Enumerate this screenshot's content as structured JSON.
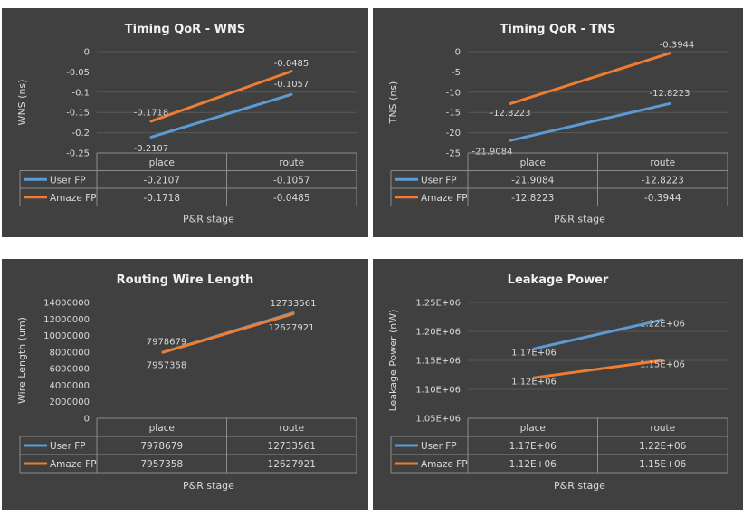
{
  "colors": {
    "background": "#404040",
    "user_fp": "#5b9bd5",
    "amaze_fp": "#ed7d31",
    "text": "#d9d9d9",
    "grid": "#595959"
  },
  "chart_data": [
    {
      "type": "line",
      "title": "Timing QoR - WNS",
      "xlabel": "P&R stage",
      "ylabel": "WNS (ns)",
      "categories": [
        "place",
        "route"
      ],
      "ylim": [
        -0.25,
        0
      ],
      "yticks": [
        "0",
        "-0.05",
        "-0.1",
        "-0.15",
        "-0.2",
        "-0.25"
      ],
      "grid": true,
      "legend": "data-table",
      "series": [
        {
          "name": "User FP",
          "values": [
            -0.2107,
            -0.1057
          ],
          "labels": [
            "-0.2107",
            "-0.1057"
          ],
          "color": "#5b9bd5"
        },
        {
          "name": "Amaze FP",
          "values": [
            -0.1718,
            -0.0485
          ],
          "labels": [
            "-0.1718",
            "-0.0485"
          ],
          "color": "#ed7d31"
        }
      ]
    },
    {
      "type": "line",
      "title": "Timing QoR - TNS",
      "xlabel": "P&R stage",
      "ylabel": "TNS (ns)",
      "categories": [
        "place",
        "route"
      ],
      "ylim": [
        -25,
        0
      ],
      "yticks": [
        "0",
        "-5",
        "-10",
        "-15",
        "-20",
        "-25"
      ],
      "grid": true,
      "legend": "data-table",
      "series": [
        {
          "name": "User FP",
          "values": [
            -21.9084,
            -12.8223
          ],
          "labels": [
            "-21.9084",
            "-12.8223"
          ],
          "color": "#5b9bd5"
        },
        {
          "name": "Amaze FP",
          "values": [
            -12.8223,
            -0.3944
          ],
          "labels": [
            "-12.8223",
            "-0.3944"
          ],
          "color": "#ed7d31"
        }
      ]
    },
    {
      "type": "line",
      "title": "Routing Wire Length",
      "xlabel": "P&R stage",
      "ylabel": "Wire Length (um)",
      "categories": [
        "place",
        "route"
      ],
      "ylim": [
        0,
        14000000
      ],
      "yticks": [
        "14000000",
        "12000000",
        "10000000",
        "8000000",
        "6000000",
        "4000000",
        "2000000",
        "0"
      ],
      "grid": false,
      "legend": "data-table",
      "series": [
        {
          "name": "User FP",
          "values": [
            7978679,
            12733561
          ],
          "labels": [
            "7978679",
            "12733561"
          ],
          "color": "#5b9bd5"
        },
        {
          "name": "Amaze FP",
          "values": [
            7957358,
            12627921
          ],
          "labels": [
            "7957358",
            "12627921"
          ],
          "color": "#ed7d31"
        }
      ]
    },
    {
      "type": "line",
      "title": "Leakage Power",
      "xlabel": "P&R stage",
      "ylabel": "Leakage Power (nW)",
      "categories": [
        "place",
        "route"
      ],
      "ylim": [
        1050000,
        1250000
      ],
      "yticks": [
        "1.25E+06",
        "1.20E+06",
        "1.15E+06",
        "1.10E+06",
        "1.05E+06"
      ],
      "grid": true,
      "legend": "data-table",
      "series": [
        {
          "name": "User FP",
          "values": [
            1170000,
            1220000
          ],
          "labels": [
            "1.17E+06",
            "1.22E+06"
          ],
          "color": "#5b9bd5"
        },
        {
          "name": "Amaze FP",
          "values": [
            1120000,
            1150000
          ],
          "labels": [
            "1.12E+06",
            "1.15E+06"
          ],
          "color": "#ed7d31"
        }
      ]
    }
  ]
}
